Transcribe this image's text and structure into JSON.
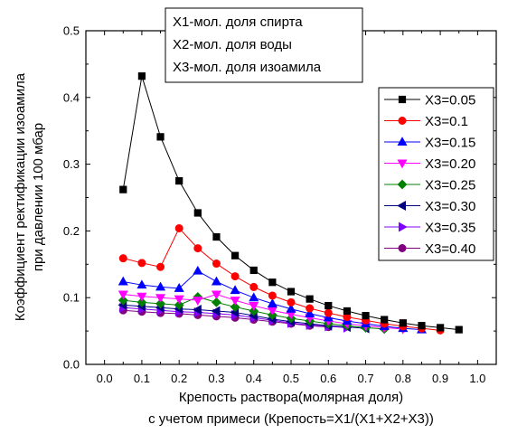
{
  "chart_data": {
    "type": "line",
    "title": "",
    "xlabel": [
      "Крепость раствора(молярная доля)",
      "с учетом примеси (Крепость=X1/(X1+X2+X3))"
    ],
    "ylabel": [
      "Коэффициент ректификации изоамила",
      "при давлении 100 мбар"
    ],
    "xlim": [
      -0.05,
      1.05
    ],
    "ylim": [
      0.0,
      0.5
    ],
    "xticks": [
      "0.0",
      "0.1",
      "0.2",
      "0.3",
      "0.4",
      "0.5",
      "0.6",
      "0.7",
      "0.8",
      "0.9",
      "1.0"
    ],
    "yticks": [
      "0.0",
      "0.1",
      "0.2",
      "0.3",
      "0.4",
      "0.5"
    ],
    "grid": false,
    "legend_position": "right",
    "annotation": [
      "X1-мол. доля спирта",
      "X2-мол. доля воды",
      "X3-мол. доля изоамила"
    ],
    "series": [
      {
        "name": "X3=0.05",
        "color": "#000000",
        "marker": "square",
        "x": [
          0.05,
          0.1,
          0.15,
          0.2,
          0.25,
          0.3,
          0.35,
          0.4,
          0.45,
          0.5,
          0.55,
          0.6,
          0.65,
          0.7,
          0.75,
          0.8,
          0.85,
          0.9,
          0.95
        ],
        "y": [
          0.262,
          0.432,
          0.341,
          0.275,
          0.227,
          0.191,
          0.163,
          0.141,
          0.123,
          0.109,
          0.098,
          0.088,
          0.08,
          0.073,
          0.067,
          0.062,
          0.058,
          0.055,
          0.052
        ]
      },
      {
        "name": "X3=0.1",
        "color": "#ff0000",
        "marker": "circle",
        "x": [
          0.05,
          0.1,
          0.15,
          0.2,
          0.25,
          0.3,
          0.35,
          0.4,
          0.45,
          0.5,
          0.55,
          0.6,
          0.65,
          0.7,
          0.75,
          0.8,
          0.85,
          0.9
        ],
        "y": [
          0.159,
          0.152,
          0.146,
          0.204,
          0.174,
          0.151,
          0.132,
          0.116,
          0.103,
          0.093,
          0.084,
          0.077,
          0.071,
          0.066,
          0.061,
          0.057,
          0.054,
          0.051
        ]
      },
      {
        "name": "X3=0.15",
        "color": "#0000ff",
        "marker": "triangle-up",
        "x": [
          0.05,
          0.1,
          0.15,
          0.2,
          0.25,
          0.3,
          0.35,
          0.4,
          0.45,
          0.5,
          0.55,
          0.6,
          0.65,
          0.7,
          0.75,
          0.8,
          0.85
        ],
        "y": [
          0.124,
          0.119,
          0.116,
          0.114,
          0.14,
          0.124,
          0.111,
          0.1,
          0.091,
          0.083,
          0.076,
          0.07,
          0.065,
          0.061,
          0.057,
          0.054,
          0.052
        ]
      },
      {
        "name": "X3=0.20",
        "color": "#ff00ff",
        "marker": "triangle-down",
        "x": [
          0.05,
          0.1,
          0.15,
          0.2,
          0.25,
          0.3,
          0.35,
          0.4,
          0.45,
          0.5,
          0.55,
          0.6,
          0.65,
          0.7,
          0.75,
          0.8
        ],
        "y": [
          0.105,
          0.102,
          0.1,
          0.098,
          0.096,
          0.105,
          0.096,
          0.088,
          0.081,
          0.075,
          0.07,
          0.065,
          0.061,
          0.058,
          0.055,
          0.053
        ]
      },
      {
        "name": "X3=0.25",
        "color": "#008000",
        "marker": "diamond",
        "x": [
          0.05,
          0.1,
          0.15,
          0.2,
          0.25,
          0.3,
          0.35,
          0.4,
          0.45,
          0.5,
          0.55,
          0.6,
          0.65,
          0.7,
          0.75
        ],
        "y": [
          0.096,
          0.093,
          0.091,
          0.089,
          0.101,
          0.093,
          0.086,
          0.08,
          0.074,
          0.069,
          0.065,
          0.061,
          0.058,
          0.055,
          0.053
        ]
      },
      {
        "name": "X3=0.30",
        "color": "#000080",
        "marker": "triangle-left",
        "x": [
          0.05,
          0.1,
          0.15,
          0.2,
          0.25,
          0.3,
          0.35,
          0.4,
          0.45,
          0.5,
          0.55,
          0.6,
          0.65,
          0.7
        ],
        "y": [
          0.089,
          0.087,
          0.085,
          0.083,
          0.082,
          0.08,
          0.078,
          0.073,
          0.068,
          0.064,
          0.061,
          0.058,
          0.056,
          0.054
        ]
      },
      {
        "name": "X3=0.35",
        "color": "#8000ff",
        "marker": "triangle-right",
        "x": [
          0.05,
          0.1,
          0.15,
          0.2,
          0.25,
          0.3,
          0.35,
          0.4,
          0.45,
          0.5,
          0.55,
          0.6,
          0.65
        ],
        "y": [
          0.085,
          0.083,
          0.081,
          0.079,
          0.078,
          0.076,
          0.074,
          0.07,
          0.066,
          0.062,
          0.059,
          0.057,
          0.055
        ]
      },
      {
        "name": "X3=0.40",
        "color": "#800080",
        "marker": "circle",
        "x": [
          0.05,
          0.1,
          0.15,
          0.2,
          0.25,
          0.3,
          0.35,
          0.4,
          0.45,
          0.5,
          0.55,
          0.6
        ],
        "y": [
          0.081,
          0.079,
          0.077,
          0.076,
          0.074,
          0.072,
          0.07,
          0.067,
          0.064,
          0.061,
          0.058,
          0.056
        ]
      }
    ]
  }
}
